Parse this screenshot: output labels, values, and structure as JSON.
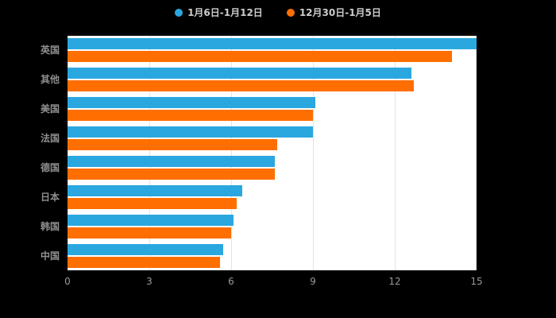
{
  "chart_data": {
    "type": "bar",
    "orientation": "horizontal",
    "title": "",
    "categories": [
      "英国",
      "其他",
      "美国",
      "法国",
      "德国",
      "日本",
      "韩国",
      "中国"
    ],
    "series": [
      {
        "name": "1月6日-1月12日",
        "color": "#2BA7DF",
        "values": [
          15.0,
          12.6,
          9.1,
          9.0,
          7.6,
          6.4,
          6.1,
          5.7
        ]
      },
      {
        "name": "12月30日-1月5日",
        "color": "#FF6E00",
        "values": [
          14.1,
          12.7,
          9.0,
          7.7,
          7.6,
          6.2,
          6.0,
          5.6
        ]
      }
    ],
    "xlim": [
      0,
      15
    ],
    "xticks": [
      0,
      3,
      6,
      9,
      12,
      15
    ],
    "grid": true,
    "legend_position": "top",
    "xlabel": "",
    "ylabel": ""
  },
  "colors": {
    "background": "#000000",
    "plot_background": "#ffffff",
    "gridline": "#e3e3e3",
    "category_label": "#8f8f8f",
    "tick_label": "#999999",
    "legend_label": "#cccccc"
  }
}
